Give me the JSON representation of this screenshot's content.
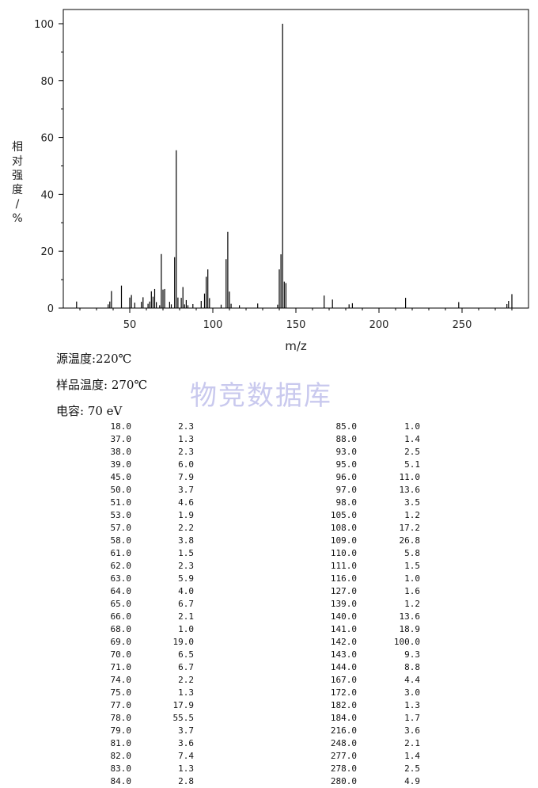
{
  "chart_data": {
    "type": "bar",
    "xlabel": "m/z",
    "ylabel": "相对强度/%",
    "xlim": [
      10,
      290
    ],
    "ylim": [
      0,
      105
    ],
    "x_ticks": [
      50,
      100,
      150,
      200,
      250
    ],
    "y_ticks": [
      0,
      20,
      40,
      60,
      80,
      100
    ],
    "grid": false,
    "peaks": [
      [
        18.0,
        2.3
      ],
      [
        37.0,
        1.3
      ],
      [
        38.0,
        2.3
      ],
      [
        39.0,
        6.0
      ],
      [
        45.0,
        7.9
      ],
      [
        50.0,
        3.7
      ],
      [
        51.0,
        4.6
      ],
      [
        53.0,
        1.9
      ],
      [
        57.0,
        2.2
      ],
      [
        58.0,
        3.8
      ],
      [
        61.0,
        1.5
      ],
      [
        62.0,
        2.3
      ],
      [
        63.0,
        5.9
      ],
      [
        64.0,
        4.0
      ],
      [
        65.0,
        6.7
      ],
      [
        66.0,
        2.1
      ],
      [
        68.0,
        1.0
      ],
      [
        69.0,
        19.0
      ],
      [
        70.0,
        6.5
      ],
      [
        71.0,
        6.7
      ],
      [
        74.0,
        2.2
      ],
      [
        75.0,
        1.3
      ],
      [
        77.0,
        17.9
      ],
      [
        78.0,
        55.5
      ],
      [
        79.0,
        3.7
      ],
      [
        81.0,
        3.6
      ],
      [
        82.0,
        7.4
      ],
      [
        83.0,
        1.3
      ],
      [
        84.0,
        2.8
      ],
      [
        85.0,
        1.0
      ],
      [
        88.0,
        1.4
      ],
      [
        93.0,
        2.5
      ],
      [
        95.0,
        5.1
      ],
      [
        96.0,
        11.0
      ],
      [
        97.0,
        13.6
      ],
      [
        98.0,
        3.5
      ],
      [
        105.0,
        1.2
      ],
      [
        108.0,
        17.2
      ],
      [
        109.0,
        26.8
      ],
      [
        110.0,
        5.8
      ],
      [
        111.0,
        1.5
      ],
      [
        116.0,
        1.0
      ],
      [
        127.0,
        1.6
      ],
      [
        139.0,
        1.2
      ],
      [
        140.0,
        13.6
      ],
      [
        141.0,
        18.9
      ],
      [
        142.0,
        100.0
      ],
      [
        143.0,
        9.3
      ],
      [
        144.0,
        8.8
      ],
      [
        167.0,
        4.4
      ],
      [
        172.0,
        3.0
      ],
      [
        182.0,
        1.3
      ],
      [
        184.0,
        1.7
      ],
      [
        216.0,
        3.6
      ],
      [
        248.0,
        2.1
      ],
      [
        277.0,
        1.4
      ],
      [
        278.0,
        2.5
      ],
      [
        280.0,
        4.9
      ]
    ]
  },
  "info": {
    "source_temp": "源温度:220℃",
    "sample_temp": "样品温度: 270℃",
    "voltage": "电容: 70 eV"
  },
  "watermark": "物竞数据库",
  "table_left": [
    [
      "18.0",
      "2.3"
    ],
    [
      "37.0",
      "1.3"
    ],
    [
      "38.0",
      "2.3"
    ],
    [
      "39.0",
      "6.0"
    ],
    [
      "45.0",
      "7.9"
    ],
    [
      "50.0",
      "3.7"
    ],
    [
      "51.0",
      "4.6"
    ],
    [
      "53.0",
      "1.9"
    ],
    [
      "57.0",
      "2.2"
    ],
    [
      "58.0",
      "3.8"
    ],
    [
      "61.0",
      "1.5"
    ],
    [
      "62.0",
      "2.3"
    ],
    [
      "63.0",
      "5.9"
    ],
    [
      "64.0",
      "4.0"
    ],
    [
      "65.0",
      "6.7"
    ],
    [
      "66.0",
      "2.1"
    ],
    [
      "68.0",
      "1.0"
    ],
    [
      "69.0",
      "19.0"
    ],
    [
      "70.0",
      "6.5"
    ],
    [
      "71.0",
      "6.7"
    ],
    [
      "74.0",
      "2.2"
    ],
    [
      "75.0",
      "1.3"
    ],
    [
      "77.0",
      "17.9"
    ],
    [
      "78.0",
      "55.5"
    ],
    [
      "79.0",
      "3.7"
    ],
    [
      "81.0",
      "3.6"
    ],
    [
      "82.0",
      "7.4"
    ],
    [
      "83.0",
      "1.3"
    ],
    [
      "84.0",
      "2.8"
    ]
  ],
  "table_right": [
    [
      "85.0",
      "1.0"
    ],
    [
      "88.0",
      "1.4"
    ],
    [
      "93.0",
      "2.5"
    ],
    [
      "95.0",
      "5.1"
    ],
    [
      "96.0",
      "11.0"
    ],
    [
      "97.0",
      "13.6"
    ],
    [
      "98.0",
      "3.5"
    ],
    [
      "105.0",
      "1.2"
    ],
    [
      "108.0",
      "17.2"
    ],
    [
      "109.0",
      "26.8"
    ],
    [
      "110.0",
      "5.8"
    ],
    [
      "111.0",
      "1.5"
    ],
    [
      "116.0",
      "1.0"
    ],
    [
      "127.0",
      "1.6"
    ],
    [
      "139.0",
      "1.2"
    ],
    [
      "140.0",
      "13.6"
    ],
    [
      "141.0",
      "18.9"
    ],
    [
      "142.0",
      "100.0"
    ],
    [
      "143.0",
      "9.3"
    ],
    [
      "144.0",
      "8.8"
    ],
    [
      "167.0",
      "4.4"
    ],
    [
      "172.0",
      "3.0"
    ],
    [
      "182.0",
      "1.3"
    ],
    [
      "184.0",
      "1.7"
    ],
    [
      "216.0",
      "3.6"
    ],
    [
      "248.0",
      "2.1"
    ],
    [
      "277.0",
      "1.4"
    ],
    [
      "278.0",
      "2.5"
    ],
    [
      "280.0",
      "4.9"
    ]
  ]
}
